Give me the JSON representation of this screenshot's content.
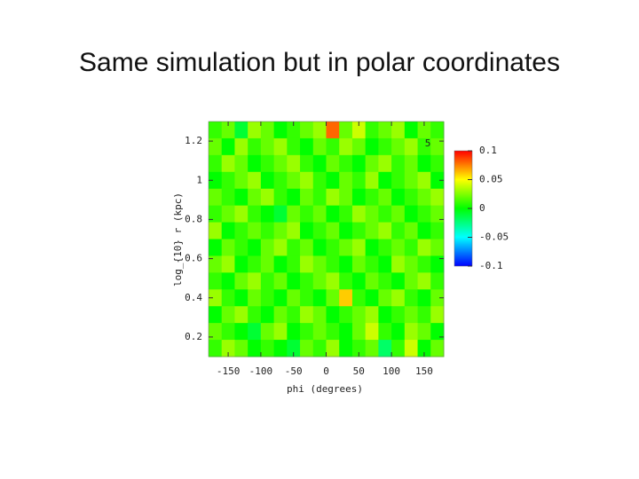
{
  "chart_data": {
    "type": "heatmap",
    "title": "Same simulation but in polar coordinates",
    "x_label": "phi (degrees)",
    "y_label": "log_{10} r (kpc)",
    "annotation": "5",
    "xlim": [
      -180,
      180
    ],
    "ylim": [
      0.1,
      1.3
    ],
    "xticks": [
      -150,
      -100,
      -50,
      0,
      50,
      100,
      150
    ],
    "yticks": [
      0.2,
      0.4,
      0.6,
      0.8,
      1,
      1.2
    ],
    "clim": [
      -0.1,
      0.1
    ],
    "cticks": [
      0.1,
      0.05,
      0,
      -0.05,
      -0.1
    ],
    "z": [
      [
        0.01,
        0.02,
        -0.01,
        0.03,
        0.02,
        0.0,
        0.01,
        0.02,
        0.03,
        0.08,
        0.02,
        0.04,
        0.01,
        0.02,
        0.03,
        0.0,
        0.02,
        0.01
      ],
      [
        0.02,
        0.0,
        0.03,
        0.01,
        0.02,
        0.03,
        0.01,
        0.0,
        0.02,
        0.01,
        0.03,
        0.02,
        0.0,
        0.01,
        0.02,
        0.03,
        0.01,
        0.02
      ],
      [
        0.01,
        0.03,
        0.02,
        0.0,
        0.01,
        0.02,
        0.03,
        0.01,
        0.0,
        0.02,
        0.01,
        0.0,
        0.02,
        0.03,
        0.01,
        0.02,
        0.0,
        0.01
      ],
      [
        0.0,
        0.01,
        0.02,
        0.03,
        0.0,
        0.01,
        0.02,
        0.03,
        0.01,
        0.0,
        0.02,
        0.01,
        0.03,
        0.0,
        0.01,
        0.02,
        0.03,
        0.0
      ],
      [
        0.02,
        0.01,
        0.0,
        0.02,
        0.03,
        0.01,
        0.0,
        0.02,
        0.01,
        0.03,
        0.02,
        0.0,
        0.01,
        0.02,
        0.0,
        0.01,
        0.02,
        0.03
      ],
      [
        0.01,
        0.02,
        0.03,
        0.01,
        0.0,
        -0.01,
        0.02,
        0.01,
        0.02,
        0.0,
        0.01,
        0.03,
        0.02,
        0.01,
        0.02,
        0.0,
        0.01,
        0.02
      ],
      [
        0.03,
        0.0,
        0.01,
        0.02,
        0.01,
        0.02,
        0.03,
        0.0,
        0.01,
        0.02,
        0.0,
        0.01,
        0.02,
        0.03,
        0.01,
        0.02,
        0.0,
        0.01
      ],
      [
        0.0,
        0.02,
        0.01,
        0.0,
        0.02,
        0.03,
        0.01,
        0.02,
        0.0,
        0.01,
        0.02,
        0.03,
        0.0,
        0.01,
        0.02,
        0.01,
        0.03,
        0.02
      ],
      [
        0.02,
        0.03,
        0.0,
        0.01,
        0.02,
        0.0,
        0.01,
        0.03,
        0.02,
        0.01,
        0.0,
        0.02,
        0.01,
        0.0,
        0.03,
        0.02,
        0.01,
        0.0
      ],
      [
        0.01,
        0.0,
        0.02,
        0.03,
        0.01,
        0.02,
        0.0,
        0.01,
        0.02,
        0.03,
        0.01,
        0.0,
        0.02,
        0.01,
        0.0,
        0.02,
        0.03,
        0.01
      ],
      [
        0.03,
        0.01,
        0.0,
        0.02,
        0.01,
        0.0,
        0.02,
        0.01,
        0.0,
        0.02,
        0.06,
        0.01,
        0.0,
        0.02,
        0.03,
        0.01,
        0.0,
        0.02
      ],
      [
        0.0,
        0.02,
        0.03,
        0.01,
        0.0,
        0.02,
        0.01,
        0.03,
        0.02,
        0.0,
        0.01,
        0.02,
        0.03,
        0.0,
        0.01,
        0.02,
        0.01,
        0.03
      ],
      [
        0.02,
        0.01,
        0.0,
        -0.01,
        0.02,
        0.03,
        0.0,
        0.01,
        0.02,
        0.01,
        0.0,
        0.02,
        0.04,
        0.01,
        0.0,
        0.03,
        0.02,
        0.0
      ],
      [
        0.01,
        0.03,
        0.02,
        0.0,
        0.01,
        0.0,
        -0.01,
        0.02,
        0.01,
        0.03,
        0.0,
        0.01,
        0.02,
        -0.02,
        0.01,
        0.04,
        0.0,
        0.02
      ]
    ]
  }
}
